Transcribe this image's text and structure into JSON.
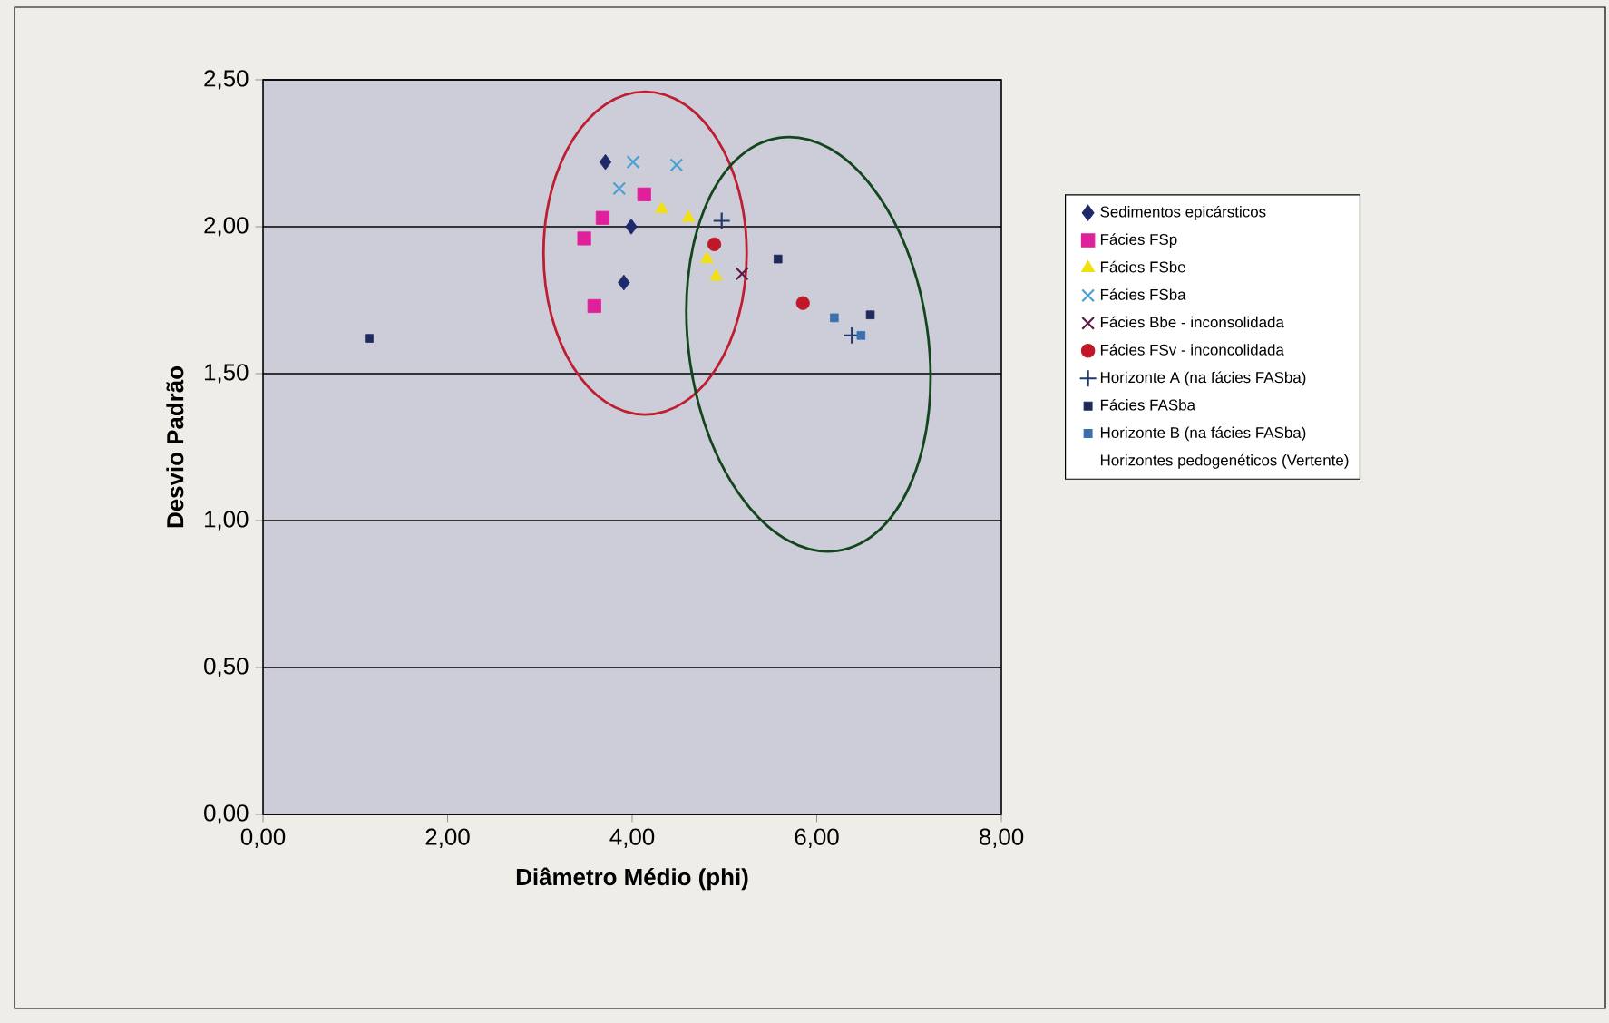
{
  "chart_data": {
    "type": "scatter",
    "xlabel": "Diâmetro Médio (phi)",
    "ylabel": "Desvio Padrão",
    "xlim": [
      0,
      8
    ],
    "ylim": [
      0,
      2.5
    ],
    "xticks": [
      {
        "value": 0,
        "label": "0,00"
      },
      {
        "value": 2,
        "label": "2,00"
      },
      {
        "value": 4,
        "label": "4,00"
      },
      {
        "value": 6,
        "label": "6,00"
      },
      {
        "value": 8,
        "label": "8,00"
      }
    ],
    "yticks": [
      {
        "value": 0,
        "label": "0,00"
      },
      {
        "value": 0.5,
        "label": "0,50"
      },
      {
        "value": 1,
        "label": "1,00"
      },
      {
        "value": 1.5,
        "label": "1,50"
      },
      {
        "value": 2,
        "label": "2,00"
      },
      {
        "value": 2.5,
        "label": "2,50"
      }
    ],
    "grid": "y",
    "legend": "right",
    "series": [
      {
        "name": "Sedimentos epicársticos",
        "color": "#1f2a6b",
        "marker": "diamond",
        "x": [
          3.71,
          3.99,
          3.91
        ],
        "values": [
          2.22,
          2.0,
          1.81
        ]
      },
      {
        "name": "Fácies FSp",
        "color": "#e0209a",
        "marker": "square",
        "x": [
          4.13,
          3.68,
          3.48,
          3.59
        ],
        "values": [
          2.11,
          2.03,
          1.96,
          1.73
        ]
      },
      {
        "name": "Fácies FSbe",
        "color": "#f0e010",
        "marker": "triangle",
        "x": [
          4.32,
          4.61,
          4.81,
          4.91
        ],
        "values": [
          2.06,
          2.03,
          1.89,
          1.83
        ]
      },
      {
        "name": "Fácies FSba",
        "color": "#4aa0d0",
        "marker": "cross",
        "x": [
          4.01,
          4.48,
          3.86
        ],
        "values": [
          2.22,
          2.21,
          2.13
        ]
      },
      {
        "name": "Fácies Bbe - inconsolidada",
        "color": "#5a1a4a",
        "marker": "cross",
        "x": [
          5.19
        ],
        "values": [
          1.84
        ]
      },
      {
        "name": "Fácies FSv - inconcolidada",
        "color": "#c01828",
        "marker": "circle",
        "x": [
          4.89,
          5.85
        ],
        "values": [
          1.94,
          1.74
        ]
      },
      {
        "name": "Horizonte A (na fácies FASba)",
        "color": "#1f3a6b",
        "marker": "plus",
        "x": [
          4.97,
          6.38
        ],
        "values": [
          2.02,
          1.63
        ]
      },
      {
        "name": "Fácies FASba",
        "color": "#1f2a5b",
        "marker": "square",
        "x": [
          1.15,
          5.58,
          6.58
        ],
        "values": [
          1.62,
          1.89,
          1.7
        ]
      },
      {
        "name": "Horizonte B (na fácies FASba)",
        "color": "#3a70b0",
        "marker": "square",
        "x": [
          6.19,
          6.48
        ],
        "values": [
          1.69,
          1.63
        ]
      },
      {
        "name": "Horizontes pedogenéticos (Vertente)",
        "marker": "none"
      }
    ]
  }
}
